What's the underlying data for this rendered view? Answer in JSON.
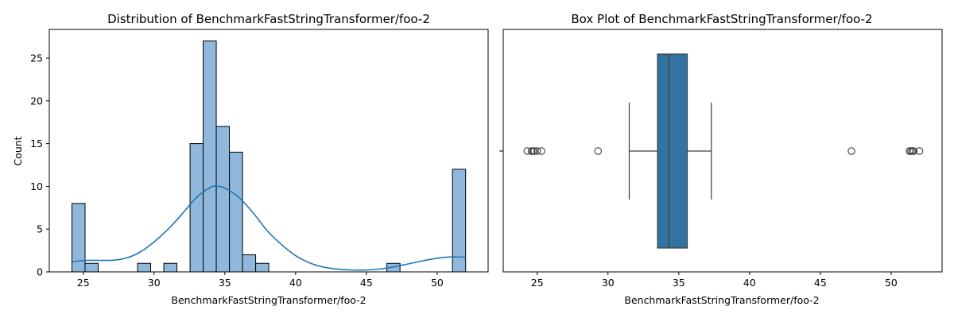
{
  "chart_data": [
    {
      "type": "histogram",
      "title": "Distribution of BenchmarkFastStringTransformer/foo-2",
      "xlabel": "BenchmarkFastStringTransformer/foo-2",
      "ylabel": "Count",
      "xlim": [
        22.6,
        53.6
      ],
      "ylim": [
        0,
        28.35
      ],
      "xticks": [
        25,
        30,
        35,
        40,
        45,
        50
      ],
      "yticks": [
        0,
        5,
        10,
        15,
        20,
        25
      ],
      "bin_start": 24.2,
      "bin_width": 0.927,
      "counts": [
        8,
        1,
        0,
        0,
        0,
        1,
        0,
        1,
        0,
        15,
        27,
        17,
        14,
        2,
        1,
        0,
        0,
        0,
        0,
        0,
        0,
        0,
        0,
        0,
        1,
        0,
        0,
        0,
        0,
        12
      ],
      "kde": {
        "x": [
          24.2,
          25.5,
          27,
          28,
          29,
          30,
          31,
          32,
          33,
          34,
          34.5,
          35,
          36,
          37,
          38,
          39,
          40,
          41,
          42,
          43,
          44,
          45,
          46,
          47,
          48,
          49,
          50,
          51,
          52
        ],
        "y": [
          1.2,
          1.35,
          1.35,
          1.6,
          2.3,
          3.5,
          5.0,
          6.8,
          8.7,
          9.9,
          10.0,
          9.8,
          8.7,
          6.9,
          4.8,
          3.2,
          1.9,
          1.05,
          0.55,
          0.32,
          0.22,
          0.22,
          0.35,
          0.6,
          0.95,
          1.3,
          1.6,
          1.75,
          1.72
        ]
      },
      "bar_color": "#8fb8dc",
      "line_color": "#1f77b4"
    },
    {
      "type": "box",
      "title": "Box Plot of BenchmarkFastStringTransformer/foo-2",
      "xlabel": "BenchmarkFastStringTransformer/foo-2",
      "xlim": [
        22.6,
        53.6
      ],
      "xticks": [
        25,
        30,
        35,
        40,
        45,
        50
      ],
      "whisker_low": 31.5,
      "q1": 33.5,
      "median": 34.3,
      "q3": 35.6,
      "whisker_high": 37.3,
      "outliers": [
        24.3,
        24.6,
        24.7,
        24.8,
        25.0,
        25.3,
        29.3,
        47.2,
        51.3,
        51.4,
        51.5,
        51.6,
        52.0
      ],
      "box_color": "#3274a1"
    }
  ]
}
